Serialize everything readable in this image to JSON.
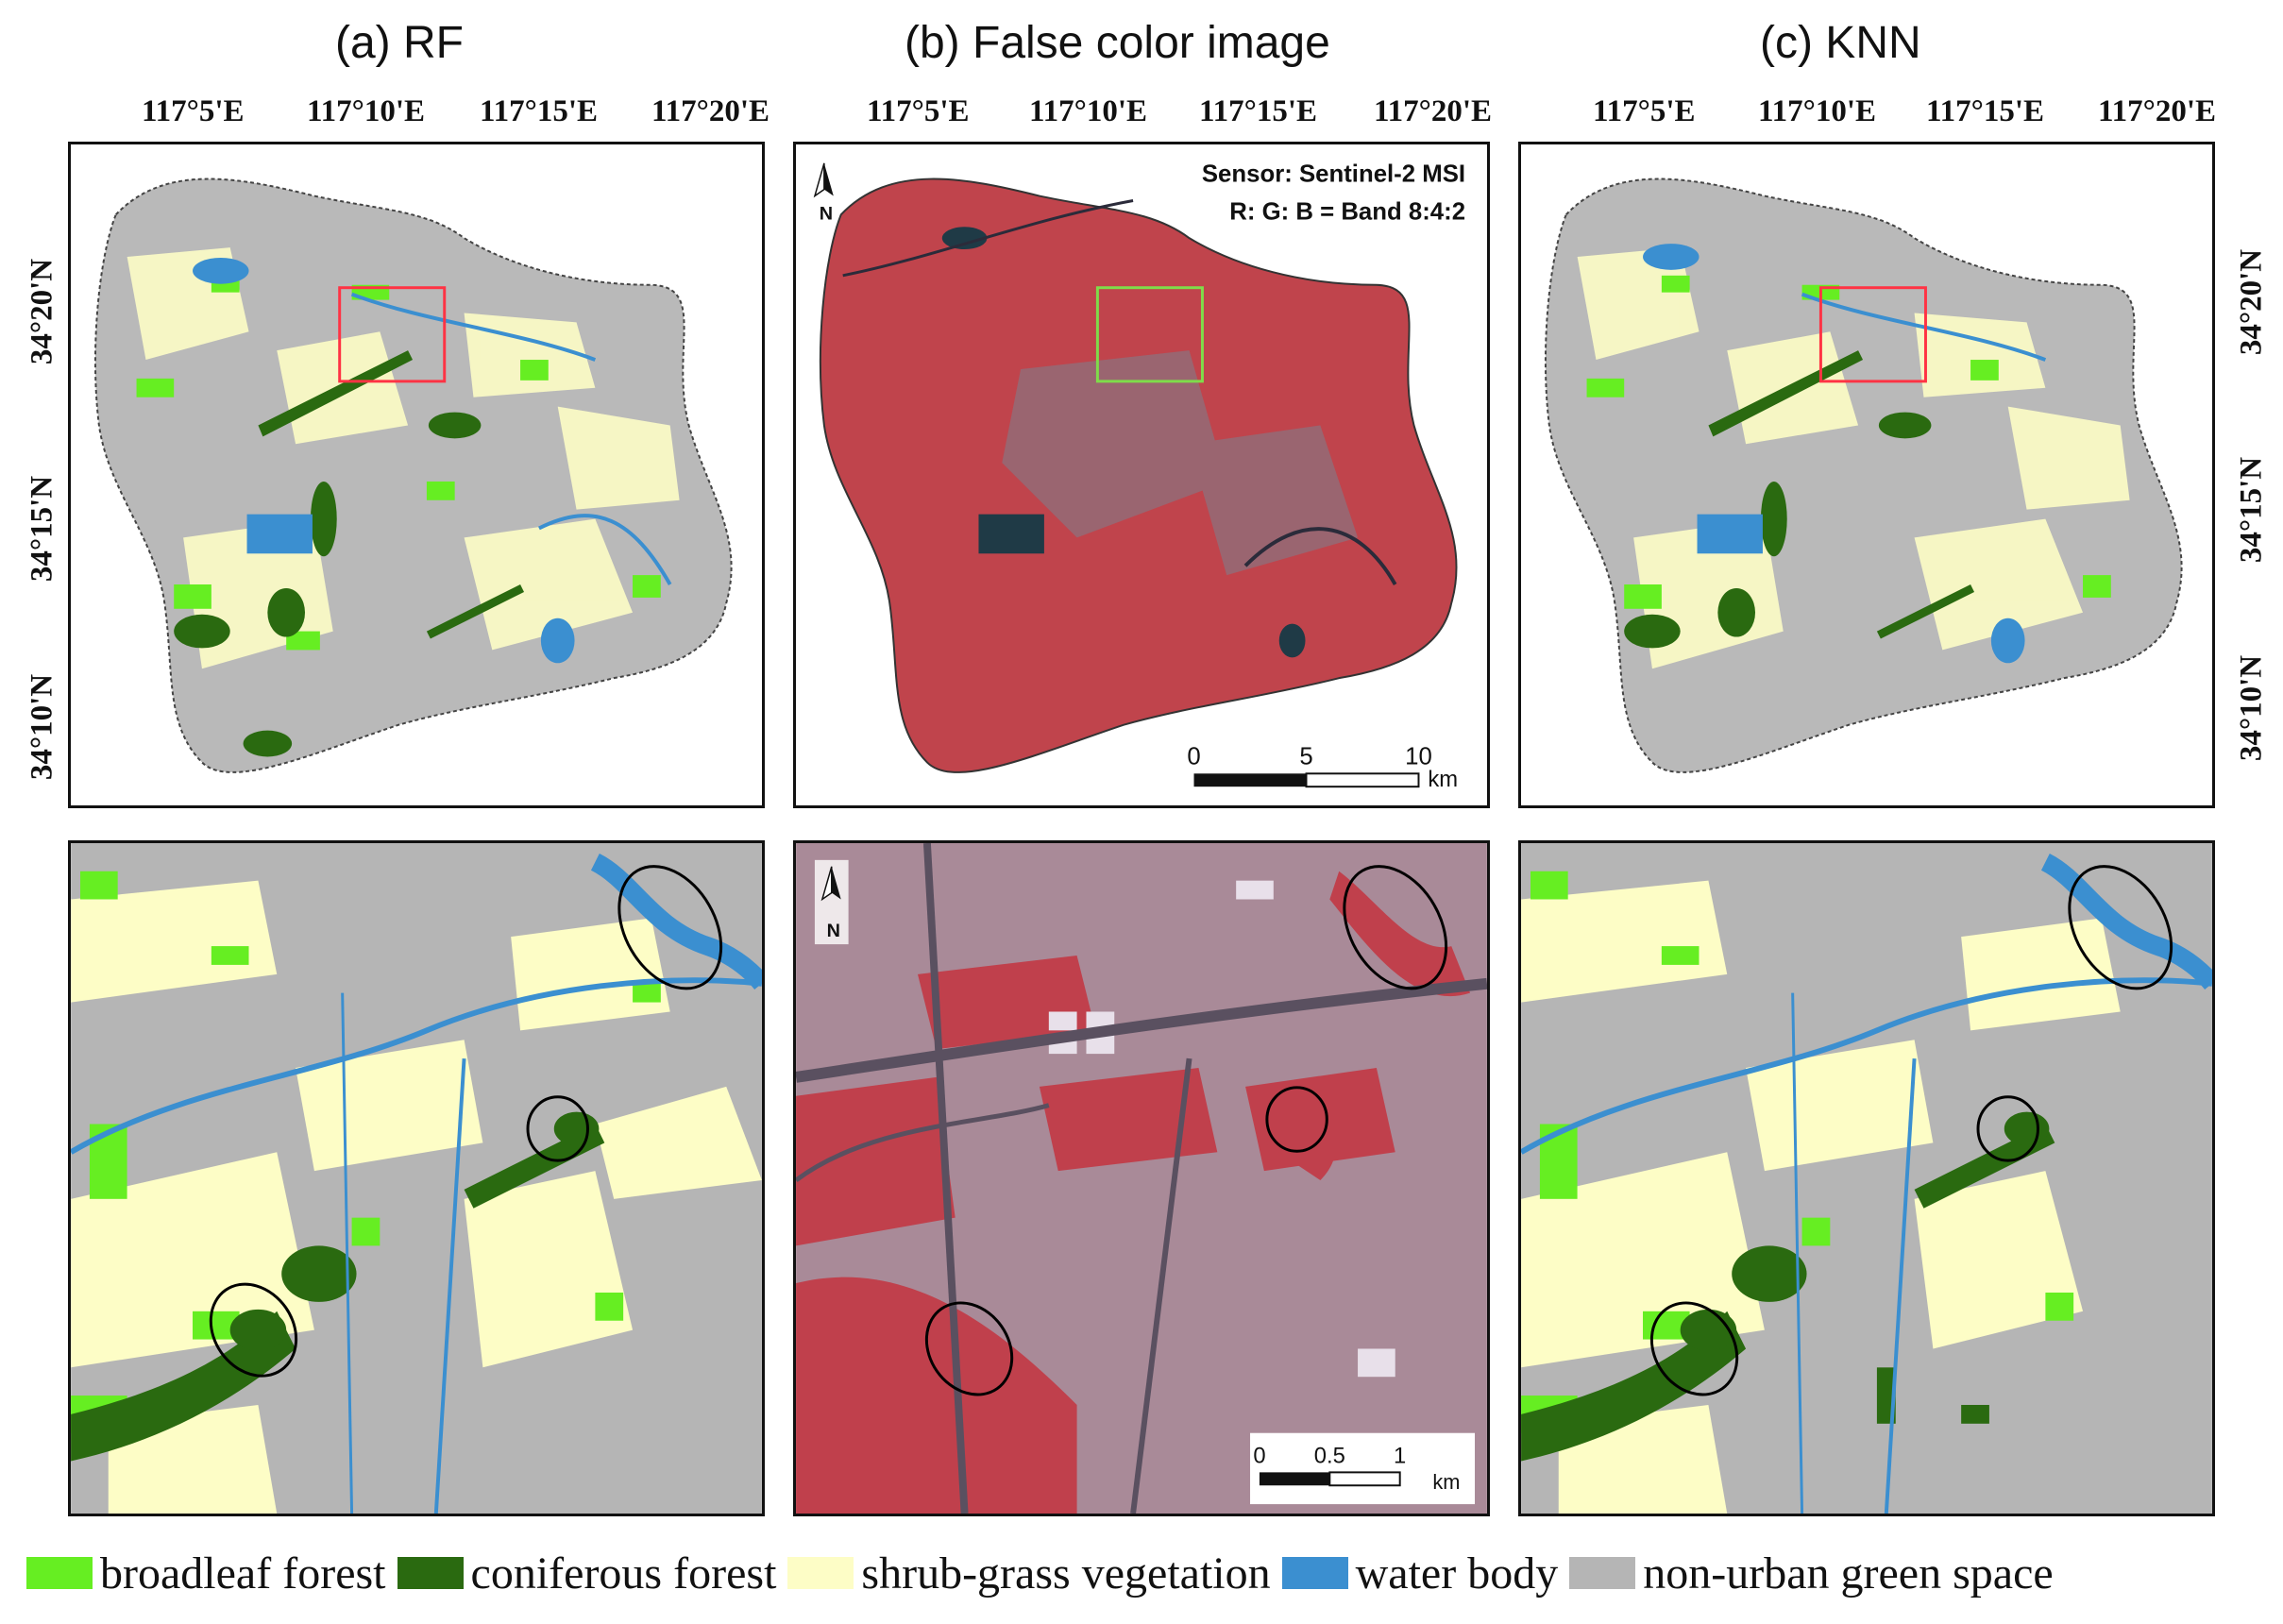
{
  "titles": [
    "(a) RF",
    "(b) False color image",
    "(c) KNN"
  ],
  "longitude_ticks": [
    "117°5'E",
    "117°10'E",
    "117°15'E",
    "117°20'E"
  ],
  "latitude_ticks": [
    "34°20'N",
    "34°15'N",
    "34°10'N"
  ],
  "false_color_annotation": {
    "sensor": "Sensor: Sentinel-2 MSI",
    "bands": "R: G: B = Band 8:4:2",
    "north_label": "N"
  },
  "scale_bar_overview": {
    "ticks": [
      "0",
      "5",
      "10"
    ],
    "unit": "km"
  },
  "scale_bar_zoom": {
    "ticks": [
      "0",
      "0.5",
      "1"
    ],
    "unit": "km"
  },
  "legend": [
    {
      "label": "broadleaf forest",
      "color": "#66ee22"
    },
    {
      "label": "coniferous forest",
      "color": "#2a6a10"
    },
    {
      "label": "shrub-grass vegetation",
      "color": "#fdfdc6"
    },
    {
      "label": "water body",
      "color": "#3b8fd0"
    },
    {
      "label": "non-urban green space",
      "color": "#b5b5b5"
    }
  ],
  "colors": {
    "false_color_base": "#c0444c",
    "highlight_box_classified": "#ff3344",
    "highlight_box_falsecolor": "#7fdc4a",
    "ellipse": "#000000"
  }
}
